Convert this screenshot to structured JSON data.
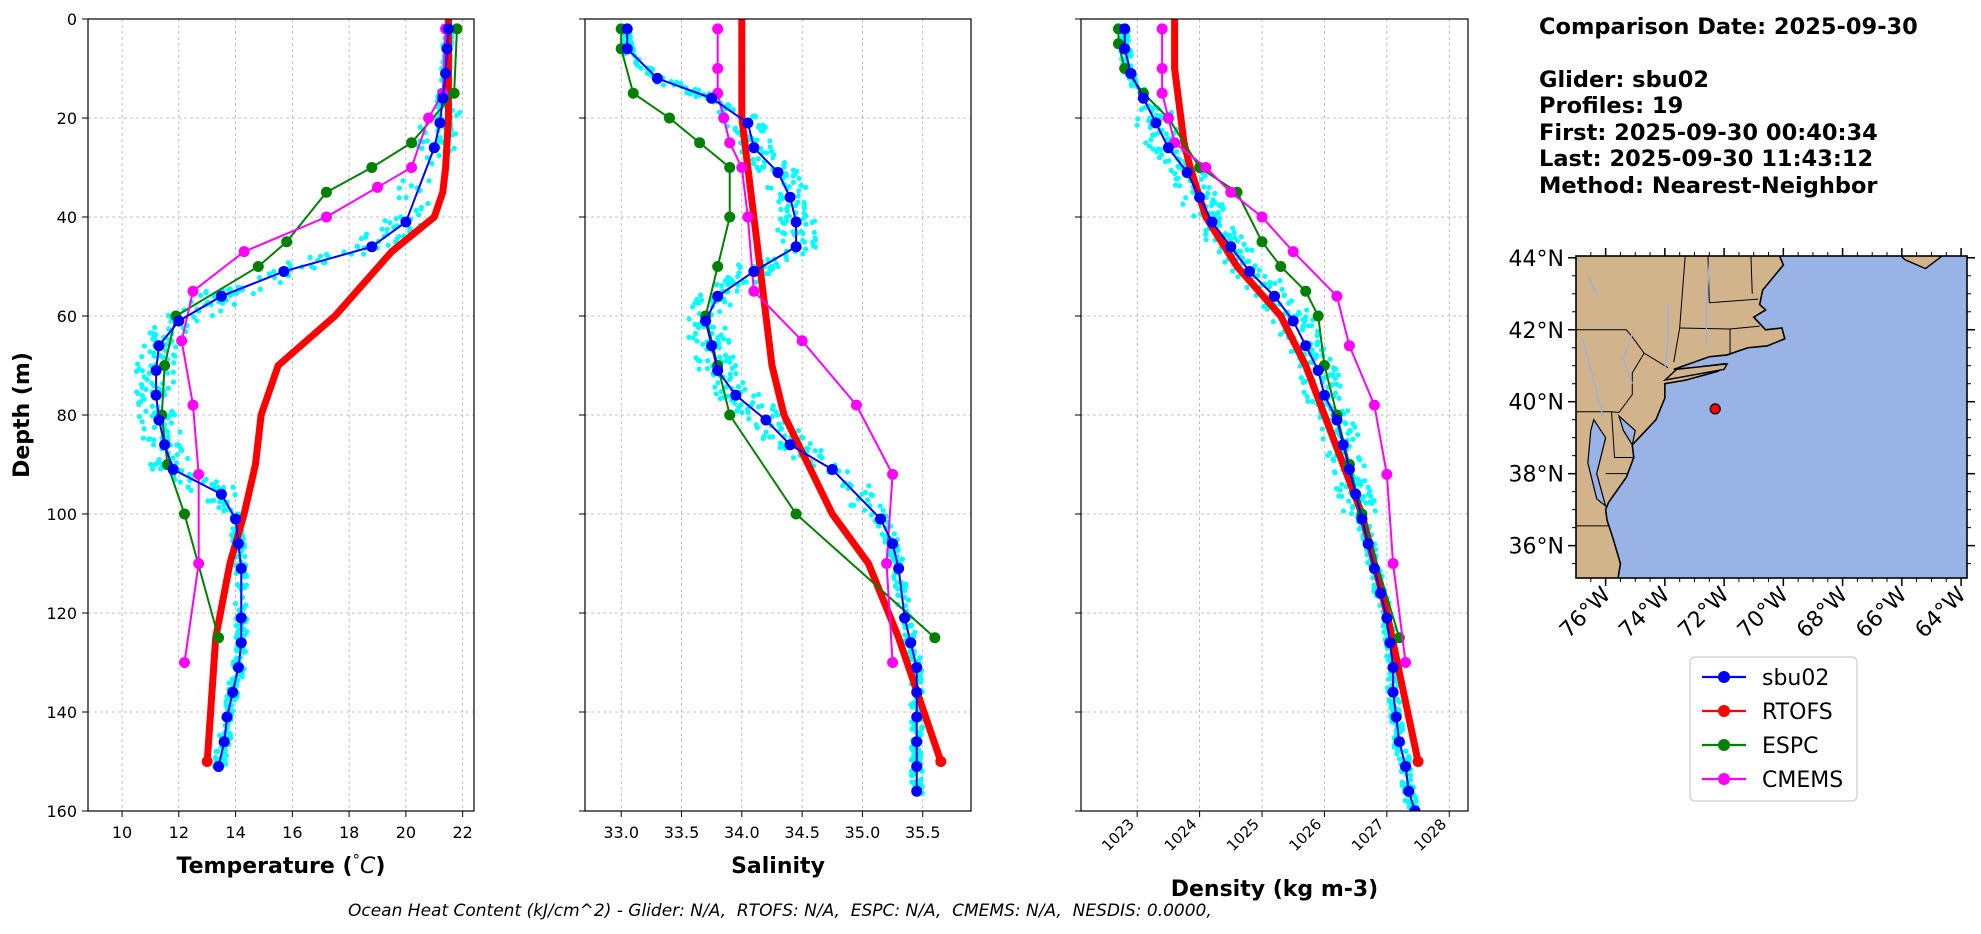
{
  "colors": {
    "glider_points": "#00ffff",
    "land": "#d2b48c",
    "ocean": "#99b3e6"
  },
  "info": {
    "comparison_date": "Comparison Date: 2025-09-30",
    "glider": "Glider: sbu02",
    "profiles": "Profiles: 19",
    "first": "First: 2025-09-30 00:40:34",
    "last": "Last: 2025-09-30 11:43:12",
    "method": "Method: Nearest-Neighbor"
  },
  "footer": "Ocean Heat Content (kJ/cm^2) - Glider: N/A,  RTOFS: N/A,  ESPC: N/A,  CMEMS: N/A,  NESDIS: 0.0000,",
  "map": {
    "lat_ticks": [
      "36°N",
      "38°N",
      "40°N",
      "42°N",
      "44°N"
    ],
    "lon_ticks": [
      "76°W",
      "74°W",
      "72°W",
      "70°W",
      "68°W",
      "66°W",
      "64°W"
    ],
    "extent": {
      "lon": [
        -77.0,
        -63.8
      ],
      "lat": [
        35.1,
        44.05
      ]
    },
    "glider_location": {
      "lon": -72.3,
      "lat": 39.8
    }
  },
  "chart_data": [
    {
      "type": "line",
      "xlabel": "Temperature (°C)",
      "ylabel": "Depth (m)",
      "xlim": [
        8.8,
        22.4
      ],
      "ylim": [
        160,
        0
      ],
      "xticks": [
        "10",
        "12",
        "14",
        "16",
        "18",
        "20",
        "22"
      ],
      "yticks": [
        "0",
        "20",
        "40",
        "60",
        "80",
        "100",
        "120",
        "140",
        "160"
      ],
      "grid": true,
      "series": [
        {
          "name": "sbu02",
          "color": "#0000ff",
          "x": [
            21.5,
            21.45,
            21.4,
            21.3,
            21.2,
            21.0,
            20.0,
            18.8,
            15.7,
            13.5,
            12.0,
            11.3,
            11.2,
            11.2,
            11.3,
            11.5,
            11.8,
            13.5,
            14.0,
            14.1,
            14.2,
            14.2,
            14.2,
            14.1,
            13.9,
            13.7,
            13.6,
            13.4
          ],
          "y": [
            2,
            6,
            11,
            16,
            21,
            26,
            41,
            46,
            51,
            56,
            61,
            66,
            71,
            76,
            81,
            86,
            91,
            96,
            101,
            106,
            111,
            121,
            126,
            131,
            136,
            141,
            146,
            151
          ]
        },
        {
          "name": "RTOFS",
          "color": "#ff0000",
          "x": [
            21.5,
            21.5,
            21.5,
            21.4,
            21.3,
            21.0,
            19.5,
            17.5,
            15.5,
            14.9,
            14.7,
            14.3,
            13.8,
            13.3,
            13.0
          ],
          "y": [
            0,
            10,
            20,
            30,
            35,
            40,
            47,
            60,
            70,
            80,
            90,
            100,
            110,
            125,
            150
          ]
        },
        {
          "name": "ESPC",
          "color": "#008000",
          "x": [
            21.8,
            21.7,
            20.2,
            18.8,
            17.2,
            15.8,
            14.8,
            11.9,
            11.5,
            11.4,
            11.6,
            12.2,
            13.4
          ],
          "y": [
            2,
            15,
            25,
            30,
            35,
            45,
            50,
            60,
            70,
            80,
            90,
            100,
            125
          ]
        },
        {
          "name": "CMEMS",
          "color": "#ff00ff",
          "x": [
            21.4,
            21.3,
            20.8,
            20.2,
            19.0,
            17.2,
            14.3,
            12.5,
            12.1,
            12.5,
            12.7,
            12.7,
            12.2
          ],
          "y": [
            2,
            15,
            20,
            30,
            34,
            40,
            47,
            55,
            65,
            78,
            92,
            110,
            130
          ]
        }
      ]
    },
    {
      "type": "line",
      "xlabel": "Salinity",
      "ylabel": "",
      "xlim": [
        32.7,
        35.9
      ],
      "ylim": [
        160,
        0
      ],
      "xticks": [
        "33.0",
        "33.5",
        "34.0",
        "34.5",
        "35.0",
        "35.5"
      ],
      "yticks": [],
      "grid": true,
      "series": [
        {
          "name": "sbu02",
          "color": "#0000ff",
          "x": [
            33.05,
            33.05,
            33.3,
            33.75,
            34.05,
            34.1,
            34.3,
            34.4,
            34.45,
            34.45,
            34.1,
            33.8,
            33.7,
            33.75,
            33.8,
            33.95,
            34.2,
            34.4,
            34.75,
            35.15,
            35.25,
            35.3,
            35.35,
            35.4,
            35.45,
            35.45,
            35.45,
            35.45,
            35.45,
            35.45
          ],
          "y": [
            2,
            6,
            12,
            16,
            21,
            26,
            31,
            36,
            41,
            46,
            51,
            56,
            61,
            66,
            71,
            76,
            81,
            86,
            91,
            101,
            106,
            111,
            121,
            126,
            131,
            136,
            141,
            146,
            151,
            156
          ]
        },
        {
          "name": "RTOFS",
          "color": "#ff0000",
          "x": [
            34.0,
            34.0,
            34.05,
            34.1,
            34.15,
            34.2,
            34.25,
            34.35,
            34.55,
            34.75,
            35.05,
            35.3,
            35.65
          ],
          "y": [
            0,
            20,
            30,
            40,
            50,
            60,
            70,
            80,
            90,
            100,
            110,
            125,
            150
          ]
        },
        {
          "name": "ESPC",
          "color": "#008000",
          "x": [
            33.0,
            33.0,
            33.1,
            33.4,
            33.65,
            33.9,
            33.9,
            33.8,
            33.7,
            33.8,
            33.9,
            34.45,
            35.6
          ],
          "y": [
            2,
            6,
            15,
            20,
            25,
            30,
            40,
            50,
            60,
            70,
            80,
            100,
            125
          ]
        },
        {
          "name": "CMEMS",
          "color": "#ff00ff",
          "x": [
            33.8,
            33.8,
            33.8,
            33.85,
            33.9,
            34.0,
            34.05,
            34.1,
            34.5,
            34.95,
            35.25,
            35.2,
            35.25
          ],
          "y": [
            2,
            10,
            15,
            20,
            25,
            30,
            40,
            55,
            65,
            78,
            92,
            110,
            130
          ]
        }
      ]
    },
    {
      "type": "line",
      "xlabel": "Density (kg m-3)",
      "ylabel": "",
      "xlim": [
        1022.1,
        1028.3
      ],
      "ylim": [
        160,
        0
      ],
      "xticks": [
        "1023",
        "1024",
        "1025",
        "1026",
        "1027",
        "1028"
      ],
      "yticks": [],
      "grid": true,
      "series": [
        {
          "name": "sbu02",
          "color": "#0000ff",
          "x": [
            1022.8,
            1022.8,
            1022.9,
            1023.1,
            1023.3,
            1023.5,
            1023.8,
            1024.0,
            1024.2,
            1024.5,
            1024.8,
            1025.2,
            1025.5,
            1025.7,
            1025.9,
            1026.0,
            1026.2,
            1026.3,
            1026.4,
            1026.5,
            1026.6,
            1026.7,
            1026.8,
            1026.9,
            1027.0,
            1027.05,
            1027.1,
            1027.1,
            1027.15,
            1027.2,
            1027.3,
            1027.35,
            1027.45
          ],
          "y": [
            2,
            6,
            11,
            16,
            21,
            26,
            31,
            36,
            41,
            46,
            51,
            56,
            61,
            66,
            71,
            76,
            81,
            86,
            91,
            96,
            101,
            106,
            111,
            116,
            121,
            126,
            131,
            136,
            141,
            146,
            151,
            156,
            160
          ]
        },
        {
          "name": "RTOFS",
          "color": "#ff0000",
          "x": [
            1023.6,
            1023.6,
            1023.7,
            1023.75,
            1023.85,
            1024.1,
            1024.6,
            1025.3,
            1025.7,
            1026.0,
            1026.3,
            1026.6,
            1027.0,
            1027.5
          ],
          "y": [
            0,
            10,
            20,
            25,
            30,
            40,
            50,
            60,
            70,
            80,
            90,
            100,
            120,
            150
          ]
        },
        {
          "name": "ESPC",
          "color": "#008000",
          "x": [
            1022.7,
            1022.7,
            1022.8,
            1023.1,
            1023.5,
            1024.0,
            1024.6,
            1025.0,
            1025.3,
            1025.7,
            1025.9,
            1026.0,
            1026.2,
            1026.4,
            1026.6,
            1027.2
          ],
          "y": [
            2,
            5,
            10,
            15,
            20,
            30,
            35,
            45,
            50,
            55,
            60,
            70,
            80,
            90,
            100,
            125
          ]
        },
        {
          "name": "CMEMS",
          "color": "#ff00ff",
          "x": [
            1023.4,
            1023.4,
            1023.4,
            1023.5,
            1023.6,
            1024.1,
            1024.5,
            1025.0,
            1025.5,
            1026.2,
            1026.4,
            1026.8,
            1027.0,
            1027.1,
            1027.3
          ],
          "y": [
            2,
            10,
            15,
            20,
            25,
            30,
            35,
            40,
            47,
            56,
            66,
            78,
            92,
            110,
            130
          ]
        }
      ]
    }
  ],
  "legend": {
    "placement": "below map",
    "entries": [
      {
        "label": "sbu02",
        "color": "#0000ff"
      },
      {
        "label": "RTOFS",
        "color": "#ff0000"
      },
      {
        "label": "ESPC",
        "color": "#008000"
      },
      {
        "label": "CMEMS",
        "color": "#ff00ff"
      }
    ]
  }
}
